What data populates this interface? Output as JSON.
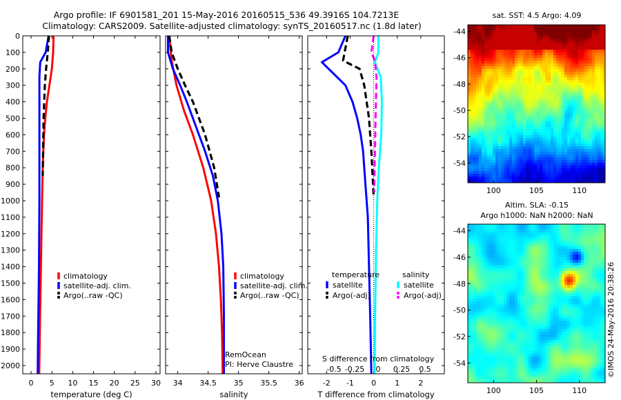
{
  "figure": {
    "title_line1": "Argo profile: IF 6901581_201 15-May-2016 20160515_536 49.3916S 104.7213E",
    "title_line2": "Climatology: CARS2009. Satellite-adjusted climatology: synTS_20160517.nc (1.8d later)",
    "stamp": "©IMOS 24-May-2016 20:38:26"
  },
  "colors": {
    "climatology": "#ff0000",
    "satellite": "#0000ff",
    "argo": "#000000",
    "satellite_salinity": "#00ffff",
    "argo_salinity_adj": "#ff00ff"
  },
  "chart_data": [
    {
      "type": "line",
      "id": "temperature",
      "xlabel": "temperature (deg C)",
      "ylabel": "",
      "xlim": [
        -2,
        31
      ],
      "ylim": [
        2050,
        0
      ],
      "xticks": [
        "0",
        "5",
        "10",
        "15",
        "20",
        "25",
        "30"
      ],
      "yticks": [
        "0",
        "100",
        "200",
        "300",
        "400",
        "500",
        "600",
        "700",
        "800",
        "900",
        "1000",
        "1100",
        "1200",
        "1300",
        "1400",
        "1500",
        "1600",
        "1700",
        "1800",
        "1900",
        "2000"
      ],
      "legend": [
        "climatology",
        "satellite-adj. clim.",
        "Argo(..raw -QC)"
      ],
      "series": [
        {
          "name": "climatology",
          "x": [
            5.4,
            5.3,
            5.0,
            4.4,
            3.8,
            3.4,
            3.1,
            2.95,
            2.8,
            2.65,
            2.5,
            2.3,
            2.15,
            2.05,
            1.95
          ],
          "y": [
            0,
            100,
            200,
            300,
            400,
            500,
            600,
            700,
            800,
            1000,
            1200,
            1500,
            1700,
            1900,
            2050
          ]
        },
        {
          "name": "satellite-adj. clim.",
          "x": [
            4.2,
            3.5,
            2.2,
            2.0,
            2.0,
            2.0,
            2.0,
            2.0,
            1.95,
            1.9,
            1.8,
            1.7,
            1.65,
            1.6
          ],
          "y": [
            0,
            100,
            160,
            250,
            400,
            600,
            800,
            1000,
            1200,
            1400,
            1600,
            1800,
            1900,
            2050
          ]
        },
        {
          "name": "Argo(..raw -QC)",
          "x": [
            4.3,
            4.0,
            3.6,
            3.3,
            3.0,
            2.9,
            2.8
          ],
          "y": [
            0,
            100,
            200,
            300,
            500,
            700,
            850
          ]
        }
      ]
    },
    {
      "type": "line",
      "id": "salinity",
      "xlabel": "salinity",
      "ylabel": "",
      "xlim": [
        33.8,
        36.05
      ],
      "ylim": [
        2050,
        0
      ],
      "xticks": [
        "34",
        "34.5",
        "35",
        "35.5",
        "36"
      ],
      "legend": [
        "climatology",
        "satellite-adj. clim.",
        "Argo(..raw -QC)"
      ],
      "annotation": [
        "RemOcean",
        "PI: Herve Claustre"
      ],
      "series": [
        {
          "name": "climatology",
          "x": [
            33.86,
            33.9,
            33.98,
            34.1,
            34.25,
            34.42,
            34.55,
            34.63,
            34.68,
            34.71,
            34.73,
            34.74,
            34.74
          ],
          "y": [
            0,
            150,
            300,
            450,
            600,
            800,
            1000,
            1200,
            1400,
            1600,
            1800,
            2000,
            2050
          ]
        },
        {
          "name": "satellite-adj. clim.",
          "x": [
            33.84,
            33.84,
            33.92,
            34.04,
            34.15,
            34.3,
            34.45,
            34.58,
            34.66,
            34.72,
            34.75,
            34.76,
            34.76
          ],
          "y": [
            0,
            100,
            200,
            300,
            400,
            550,
            700,
            850,
            1000,
            1200,
            1400,
            1700,
            2050
          ]
        },
        {
          "name": "Argo(..raw -QC)",
          "x": [
            33.86,
            33.9,
            34.0,
            34.12,
            34.25,
            34.45,
            34.6,
            34.68
          ],
          "y": [
            0,
            100,
            200,
            300,
            400,
            600,
            800,
            980
          ]
        }
      ]
    },
    {
      "type": "line",
      "id": "difference",
      "xlabel": "T difference from climatology",
      "xlabel_top": "S difference from climatology",
      "ylabel": "",
      "xlim": [
        -2.8,
        3.0
      ],
      "ylim": [
        2050,
        0
      ],
      "xticks": [
        "-2",
        "-1",
        "0",
        "1",
        "2"
      ],
      "xticks_top": [
        "-0.5",
        "-0.25",
        "0",
        "0.25",
        "0.5"
      ],
      "legend_headers": [
        "temperature",
        "salinity"
      ],
      "legend": [
        "satellite",
        "Argo(-adj)",
        "satellite",
        "Argo(-adj)"
      ],
      "series": [
        {
          "name": "satellite",
          "x": [
            -1.2,
            -1.5,
            -2.2,
            -1.7,
            -1.2,
            -0.9,
            -0.7,
            -0.55,
            -0.45,
            -0.35,
            -0.25,
            -0.2,
            -0.15,
            -0.1
          ],
          "y": [
            0,
            100,
            160,
            230,
            300,
            400,
            500,
            600,
            700,
            900,
            1100,
            1400,
            1700,
            2050
          ]
        },
        {
          "name": "Argo(-adj)",
          "x": [
            -1.1,
            -1.3,
            -0.6,
            -0.4,
            -0.2,
            -0.15,
            -0.1,
            0.0
          ],
          "y": [
            0,
            150,
            200,
            300,
            500,
            600,
            700,
            980
          ]
        },
        {
          "name": "satellite",
          "x": [
            0.2,
            0.2,
            0.05,
            0.3,
            0.35,
            0.32,
            0.22,
            0.15,
            0.1,
            0.06,
            0.04
          ],
          "y": [
            0,
            100,
            160,
            250,
            400,
            600,
            800,
            1000,
            1300,
            1700,
            2050
          ]
        },
        {
          "name": "Argo(-adj)",
          "x": [
            0.0,
            -0.1,
            0.05,
            0.12,
            0.08,
            0.04,
            0.02
          ],
          "y": [
            0,
            100,
            150,
            250,
            500,
            800,
            950
          ]
        }
      ]
    },
    {
      "type": "heatmap",
      "id": "sst_map",
      "title": "sat. SST: 4.5 Argo: 4.09",
      "xlim": [
        97,
        113
      ],
      "ylim": [
        -55.5,
        -43.5
      ],
      "xticks": [
        "100",
        "105",
        "110"
      ],
      "yticks": [
        "-44",
        "-46",
        "-48",
        "-50",
        "-52",
        "-54"
      ]
    },
    {
      "type": "heatmap",
      "id": "sla_map",
      "title_line1": "Altim. SLA: -0.15",
      "title_line2": "Argo h1000: NaN h2000: NaN",
      "xlim": [
        97,
        113
      ],
      "ylim": [
        -55.5,
        -43.5
      ],
      "xticks": [
        "100",
        "105",
        "110"
      ],
      "yticks": [
        "-44",
        "-46",
        "-48",
        "-50",
        "-52",
        "-54"
      ]
    }
  ]
}
